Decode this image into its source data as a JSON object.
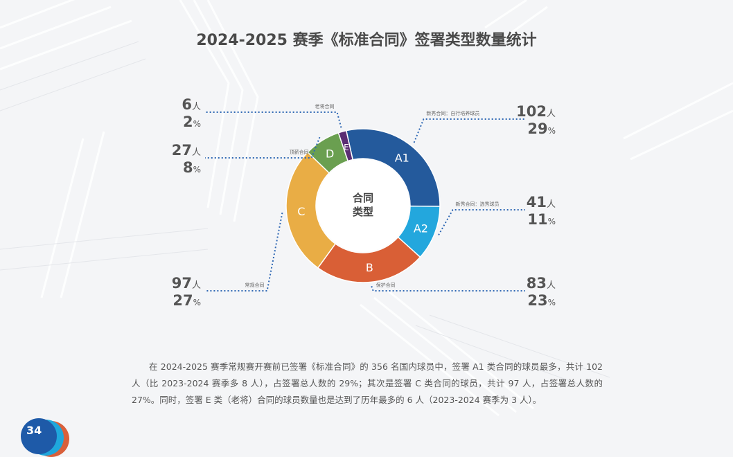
{
  "chart_data": {
    "type": "pie",
    "title": "2024-2025 赛季《标准合同》签署类型数量统计",
    "center_label": [
      "合同",
      "类型"
    ],
    "slices": [
      {
        "code": "A1",
        "name": "新秀合同：自行培养球员",
        "count": 102,
        "count_unit": "人",
        "percent": 29,
        "percent_unit": "%",
        "color": "#245a9c"
      },
      {
        "code": "A2",
        "name": "新秀合同：选秀球员",
        "count": 41,
        "count_unit": "人",
        "percent": 11,
        "percent_unit": "%",
        "color": "#23a7dd"
      },
      {
        "code": "B",
        "name": "保护合同",
        "count": 83,
        "count_unit": "人",
        "percent": 23,
        "percent_unit": "%",
        "color": "#d95f36"
      },
      {
        "code": "C",
        "name": "常规合同",
        "count": 97,
        "count_unit": "人",
        "percent": 27,
        "percent_unit": "%",
        "color": "#e9ad45"
      },
      {
        "code": "D",
        "name": "顶薪合同",
        "count": 27,
        "count_unit": "人",
        "percent": 8,
        "percent_unit": "%",
        "color": "#6a9f50"
      },
      {
        "code": "E",
        "name": "老将合同",
        "count": 6,
        "count_unit": "人",
        "percent": 2,
        "percent_unit": "%",
        "color": "#5a2d73"
      }
    ]
  },
  "paragraph": "在 2024-2025 赛季常规赛开赛前已签署《标准合同》的 356 名国内球员中，签署 A1 类合同的球员最多，共计 102 人（比 2023-2024 赛季多 8 人），占签署总人数的 29%；其次是签署 C 类合同的球员，共计 97 人，占签署总人数的 27%。同时，签署 E 类（老将）合同的球员数量也是达到了历年最多的 6 人（2023-2024 赛季为 3 人）。",
  "page_number": "34"
}
